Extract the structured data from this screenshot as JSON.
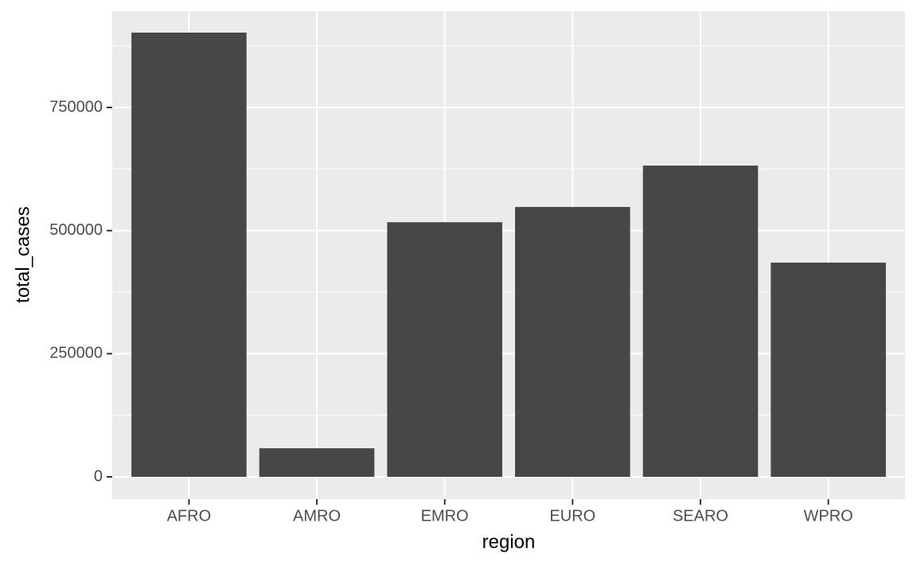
{
  "chart_data": {
    "type": "bar",
    "x_label": "region",
    "y_label": "total_cases",
    "categories": [
      "AFRO",
      "AMRO",
      "EMRO",
      "EURO",
      "SEARO",
      "WPRO"
    ],
    "values": [
      902000,
      58000,
      517000,
      548000,
      632000,
      435000
    ],
    "color": "#474747",
    "ylim": [
      -45259,
      945582
    ],
    "yticks": [
      0,
      250000,
      500000,
      750000
    ],
    "grid": true
  }
}
